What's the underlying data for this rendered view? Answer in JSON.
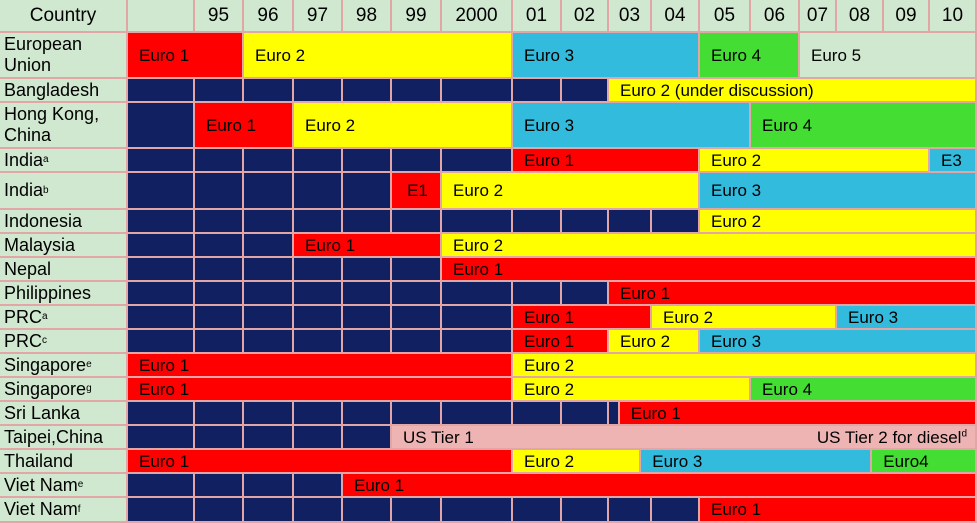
{
  "colors": {
    "navy": "#102060",
    "euro1": "#ff0000",
    "euro2": "#ffff00",
    "euro3": "#33bbdd",
    "euro4": "#44dd33",
    "euro5": "#cfe8cf",
    "us": "#eeb4b4",
    "header": "#cfe8cf"
  },
  "header": {
    "country": "Country",
    "years": [
      "",
      "95",
      "96",
      "97",
      "98",
      "99",
      "2000",
      "01",
      "02",
      "03",
      "04",
      "05",
      "06",
      "07",
      "08",
      "09",
      "10"
    ]
  },
  "rows": [
    {
      "label": "European Union",
      "sup": "",
      "segments": [
        {
          "from": 0,
          "to": 2,
          "color": "euro1",
          "label": "Euro 1"
        },
        {
          "from": 2,
          "to": 7,
          "color": "euro2",
          "label": "Euro 2"
        },
        {
          "from": 7,
          "to": 11,
          "color": "euro3",
          "label": "Euro 3"
        },
        {
          "from": 11,
          "to": 13,
          "color": "euro4",
          "label": "Euro 4"
        },
        {
          "from": 13,
          "to": 17,
          "color": "euro5",
          "label": "Euro 5"
        }
      ]
    },
    {
      "label": "Bangladesh",
      "sup": "",
      "segments": [
        {
          "from": 0,
          "to": 9,
          "color": "navy",
          "label": ""
        },
        {
          "from": 9,
          "to": 17,
          "color": "euro2",
          "label": "Euro 2 (under discussion)"
        }
      ]
    },
    {
      "label": "Hong Kong, China",
      "sup": "",
      "segments": [
        {
          "from": 0,
          "to": 1,
          "color": "navy",
          "label": ""
        },
        {
          "from": 1,
          "to": 3,
          "color": "euro1",
          "label": "Euro 1"
        },
        {
          "from": 3,
          "to": 7,
          "color": "euro2",
          "label": "Euro 2"
        },
        {
          "from": 7,
          "to": 12,
          "color": "euro3",
          "label": "Euro 3"
        },
        {
          "from": 12,
          "to": 17,
          "color": "euro4",
          "label": "Euro 4"
        }
      ]
    },
    {
      "label": "India",
      "sup": "a",
      "segments": [
        {
          "from": 0,
          "to": 7,
          "color": "navy",
          "label": ""
        },
        {
          "from": 7,
          "to": 11,
          "color": "euro1",
          "label": "Euro 1"
        },
        {
          "from": 11,
          "to": 16,
          "color": "euro2",
          "label": "Euro 2"
        },
        {
          "from": 16,
          "to": 17,
          "color": "euro3",
          "label": "E3"
        }
      ]
    },
    {
      "label": "India",
      "sup": "b",
      "segments": [
        {
          "from": 0,
          "to": 5,
          "color": "navy",
          "label": ""
        },
        {
          "from": 5,
          "to": 6,
          "color": "euro1",
          "label": "E1",
          "center": true
        },
        {
          "from": 6,
          "to": 11,
          "color": "euro2",
          "label": "Euro 2"
        },
        {
          "from": 11,
          "to": 17,
          "color": "euro3",
          "label": "Euro 3"
        }
      ]
    },
    {
      "label": "Indonesia",
      "sup": "",
      "segments": [
        {
          "from": 0,
          "to": 11,
          "color": "navy",
          "label": ""
        },
        {
          "from": 11,
          "to": 17,
          "color": "euro2",
          "label": "Euro 2"
        }
      ]
    },
    {
      "label": "Malaysia",
      "sup": "",
      "segments": [
        {
          "from": 0,
          "to": 3,
          "color": "navy",
          "label": ""
        },
        {
          "from": 3,
          "to": 6,
          "color": "euro1",
          "label": "Euro 1"
        },
        {
          "from": 6,
          "to": 17,
          "color": "euro2",
          "label": "Euro 2"
        }
      ]
    },
    {
      "label": "Nepal",
      "sup": "",
      "segments": [
        {
          "from": 0,
          "to": 6,
          "color": "navy",
          "label": ""
        },
        {
          "from": 6,
          "to": 17,
          "color": "euro1",
          "label": "Euro 1"
        }
      ]
    },
    {
      "label": "Philippines",
      "sup": "",
      "segments": [
        {
          "from": 0,
          "to": 9,
          "color": "navy",
          "label": ""
        },
        {
          "from": 9,
          "to": 17,
          "color": "euro1",
          "label": "Euro 1"
        }
      ]
    },
    {
      "label": "PRC",
      "sup": "a",
      "segments": [
        {
          "from": 0,
          "to": 7,
          "color": "navy",
          "label": ""
        },
        {
          "from": 7,
          "to": 10,
          "color": "euro1",
          "label": "Euro 1"
        },
        {
          "from": 10,
          "to": 14,
          "color": "euro2",
          "label": "Euro 2"
        },
        {
          "from": 14,
          "to": 17,
          "color": "euro3",
          "label": "Euro 3"
        }
      ]
    },
    {
      "label": "PRC",
      "sup": "c",
      "segments": [
        {
          "from": 0,
          "to": 7,
          "color": "navy",
          "label": ""
        },
        {
          "from": 7,
          "to": 9,
          "color": "euro1",
          "label": "Euro 1"
        },
        {
          "from": 9,
          "to": 11,
          "color": "euro2",
          "label": "Euro 2"
        },
        {
          "from": 11,
          "to": 17,
          "color": "euro3",
          "label": "Euro 3"
        }
      ]
    },
    {
      "label": "Singapore",
      "sup": "e",
      "segments": [
        {
          "from": 0,
          "to": 7,
          "color": "euro1",
          "label": "Euro 1"
        },
        {
          "from": 7,
          "to": 17,
          "color": "euro2",
          "label": "Euro 2"
        }
      ]
    },
    {
      "label": "Singapore",
      "sup": "g",
      "segments": [
        {
          "from": 0,
          "to": 7,
          "color": "euro1",
          "label": "Euro 1"
        },
        {
          "from": 7,
          "to": 12,
          "color": "euro2",
          "label": "Euro 2"
        },
        {
          "from": 12,
          "to": 17,
          "color": "euro4",
          "label": "Euro 4"
        }
      ]
    },
    {
      "label": "Sri Lanka",
      "sup": "",
      "segments": [
        {
          "from": 0,
          "to": 9.25,
          "color": "navy",
          "label": ""
        },
        {
          "from": 9.25,
          "to": 17,
          "color": "euro1",
          "label": "Euro 1"
        }
      ]
    },
    {
      "label": "Taipei,China",
      "sup": "",
      "segments": [
        {
          "from": 0,
          "to": 5,
          "color": "navy",
          "label": ""
        },
        {
          "from": 5,
          "to": 17,
          "color": "us",
          "label": "US Tier 1",
          "right_label": "US Tier 2 for diesel",
          "right_sup": "d"
        }
      ]
    },
    {
      "label": "Thailand",
      "sup": "",
      "segments": [
        {
          "from": 0,
          "to": 7,
          "color": "euro1",
          "label": "Euro 1"
        },
        {
          "from": 7,
          "to": 9.75,
          "color": "euro2",
          "label": "Euro 2"
        },
        {
          "from": 9.75,
          "to": 14.75,
          "color": "euro3",
          "label": "Euro 3"
        },
        {
          "from": 14.75,
          "to": 17,
          "color": "euro4",
          "label": "Euro4"
        }
      ]
    },
    {
      "label": "Viet Nam",
      "sup": "e",
      "segments": [
        {
          "from": 0,
          "to": 4,
          "color": "navy",
          "label": ""
        },
        {
          "from": 4,
          "to": 17,
          "color": "euro1",
          "label": "Euro 1"
        }
      ]
    },
    {
      "label": "Viet Nam",
      "sup": "f",
      "segments": [
        {
          "from": 0,
          "to": 11,
          "color": "navy",
          "label": ""
        },
        {
          "from": 11,
          "to": 17,
          "color": "euro1",
          "label": "Euro 1"
        }
      ]
    }
  ]
}
